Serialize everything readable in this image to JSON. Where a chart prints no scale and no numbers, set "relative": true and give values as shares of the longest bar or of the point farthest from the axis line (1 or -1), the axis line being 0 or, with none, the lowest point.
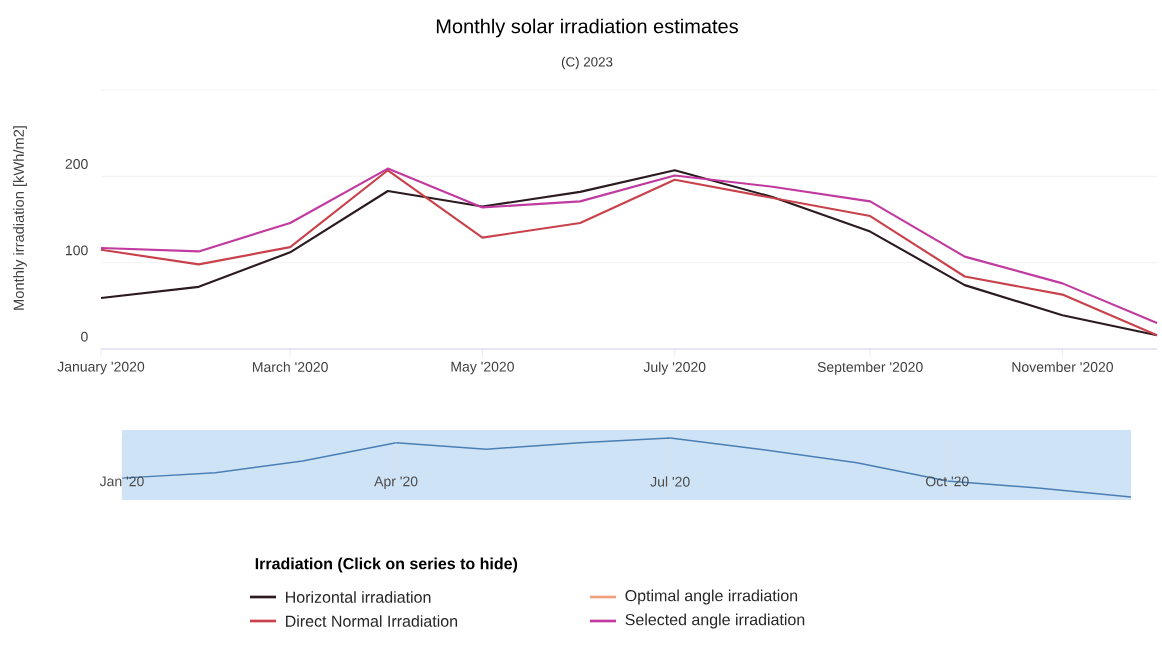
{
  "chart_data": [
    {
      "type": "line",
      "title": "Monthly solar irradiation estimates",
      "subtitle": "(C) 2023",
      "ylabel": "Monthly irradiation [kWh/m2]",
      "legend_title": "Irradiation (Click on series to hide)",
      "x": [
        "2020-01",
        "2020-02",
        "2020-03",
        "2020-04",
        "2020-05",
        "2020-06",
        "2020-07",
        "2020-08",
        "2020-09",
        "2020-10",
        "2020-11",
        "2020-12"
      ],
      "series": [
        {
          "name": "Horizontal irradiation",
          "color": "#2b1a1f",
          "values": [
            59,
            72,
            112,
            183,
            165,
            182,
            207,
            176,
            136,
            74,
            39,
            16
          ]
        },
        {
          "name": "Direct Normal Irradiation",
          "color": "#c8414b",
          "values": [
            115,
            98,
            118,
            207,
            129,
            146,
            196,
            175,
            154,
            84,
            63,
            16
          ]
        },
        {
          "name": "Optimal angle irradiation",
          "color": "#f0a07a",
          "values": [
            null,
            null,
            null,
            null,
            null,
            null,
            null,
            null,
            null,
            null,
            null,
            null
          ]
        },
        {
          "name": "Selected angle irradiation",
          "color": "#c03aa0",
          "values": [
            117,
            113,
            146,
            209,
            164,
            171,
            201,
            188,
            171,
            107,
            76,
            30
          ]
        }
      ],
      "xlim": [
        "2020-01",
        "2020-12"
      ],
      "xticks": [
        {
          "value": "2020-01",
          "label": "January '2020"
        },
        {
          "value": "2020-03",
          "label": "March '2020"
        },
        {
          "value": "2020-05",
          "label": "May '2020"
        },
        {
          "value": "2020-07",
          "label": "July '2020"
        },
        {
          "value": "2020-09",
          "label": "September '2020"
        },
        {
          "value": "2020-11",
          "label": "November '2020"
        }
      ],
      "ylim": [
        0,
        300
      ],
      "yticks": [
        0,
        100,
        200,
        {
          "value": 300,
          "label": null
        }
      ],
      "grid": "y",
      "legend": "bottom",
      "marker": "none",
      "line_style": "solid"
    },
    {
      "type": "line",
      "relative": true,
      "x": [
        "2020-01",
        "2020-02",
        "2020-03",
        "2020-04",
        "2020-05",
        "2020-06",
        "2020-07",
        "2020-08",
        "2020-09",
        "2020-10",
        "2020-11",
        "2020-12"
      ],
      "series": [
        {
          "color": "#4a7fb5",
          "values": [
            0.32,
            0.41,
            0.61,
            0.92,
            0.81,
            0.92,
            1,
            0.8,
            0.58,
            0.27,
            0.15,
            0
          ]
        }
      ],
      "xlim": [
        "2020-01",
        "2020-12"
      ],
      "xticks": [
        {
          "value": "2020-01",
          "label": "Jan '20"
        },
        {
          "value": "2020-04",
          "label": "Apr '20"
        },
        {
          "value": "2020-07",
          "label": "Jul '20"
        },
        {
          "value": "2020-10",
          "label": "Oct '20"
        }
      ],
      "bands": [
        {
          "axis": "x",
          "from": "2020-01",
          "to": "2020-12",
          "color": "#cfe3f7"
        }
      ],
      "grid": "x",
      "marker": "none",
      "line_style": "solid"
    }
  ]
}
